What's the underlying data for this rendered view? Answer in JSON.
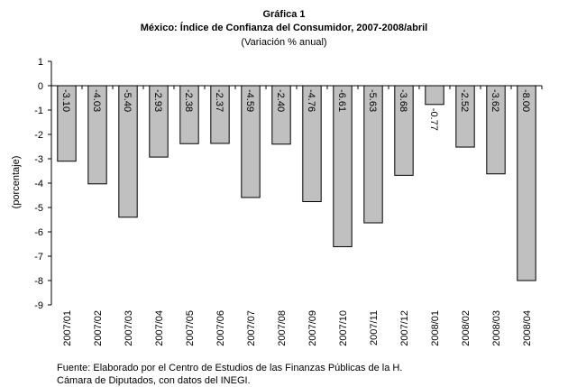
{
  "chart_data": {
    "type": "bar",
    "title": "Gráfica 1",
    "subtitle": "México: Índice de Confianza del Consumidor, 2007-2008/abril",
    "subtitle2": "(Variación % anual)",
    "y_label": "(porcentaje)",
    "categories": [
      "2007/01",
      "2007/02",
      "2007/03",
      "2007/04",
      "2007/05",
      "2007/06",
      "2007/07",
      "2007/08",
      "2007/09",
      "2007/10",
      "2007/11",
      "2007/12",
      "2008/01",
      "2008/02",
      "2008/03",
      "2008/04"
    ],
    "values": [
      -3.1,
      -4.03,
      -5.4,
      -2.93,
      -2.38,
      -2.37,
      -4.59,
      -2.4,
      -4.76,
      -6.61,
      -5.63,
      -3.68,
      -0.77,
      -2.52,
      -3.62,
      -8
    ],
    "value_labels": [
      "-3.10",
      "-4.03",
      "-5.40",
      "-2.93",
      "-2.38",
      "-2.37",
      "-4.59",
      "-2.40",
      "-4.76",
      "-6.61",
      "-5.63",
      "-3.68",
      "-0.77",
      "-2.52",
      "-3.62",
      "-8.00"
    ],
    "color": "#c0c0c0",
    "ylim": [
      -9,
      1
    ],
    "yticks": [
      1,
      0,
      -1,
      -2,
      -3,
      -4,
      -5,
      -6,
      -7,
      -8,
      -9
    ],
    "source": [
      "Fuente: Elaborado por el Centro de Estudios de las Finanzas Públicas de la H.",
      "Cámara de Diputados, con datos del INEGI."
    ]
  }
}
